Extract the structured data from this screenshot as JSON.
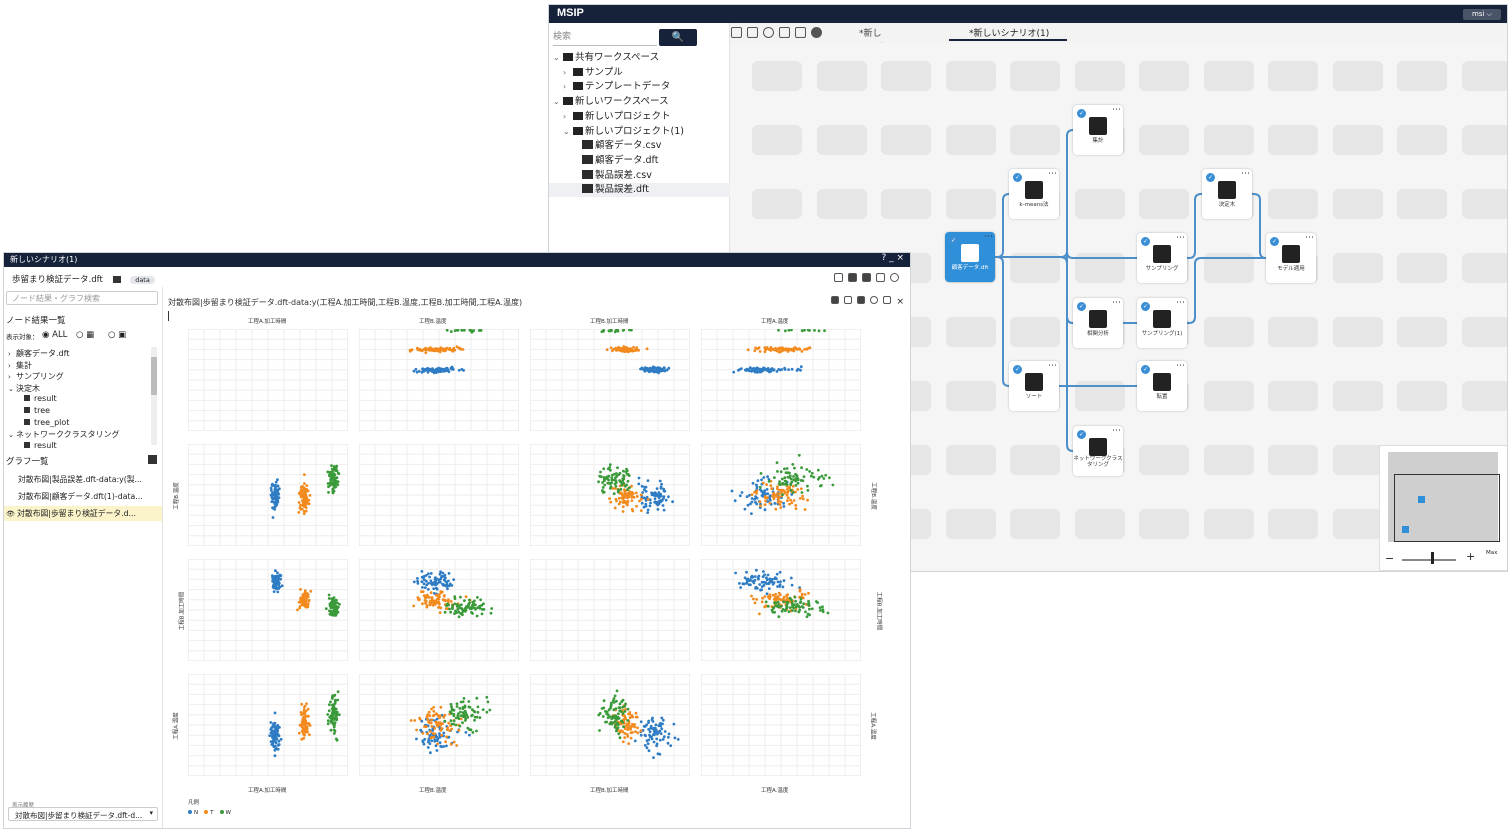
{
  "msip": {
    "app_title": "MSIP",
    "user_label": "msi ⌵",
    "search_placeholder": "検索",
    "search_button": "🔍",
    "tree": [
      {
        "label": "共有ワークスペース",
        "level": 0,
        "chevron": "⌄"
      },
      {
        "label": "サンプル",
        "level": 1,
        "chevron": "›"
      },
      {
        "label": "テンプレートデータ",
        "level": 1,
        "chevron": "›"
      },
      {
        "label": "新しいワークスペース",
        "level": 0,
        "chevron": "⌄"
      },
      {
        "label": "新しいプロジェクト",
        "level": 1,
        "chevron": "›"
      },
      {
        "label": "新しいプロジェクト(1)",
        "level": 1,
        "chevron": "⌄"
      },
      {
        "label": "顧客データ.csv",
        "level": 2,
        "chevron": ""
      },
      {
        "label": "顧客データ.dft",
        "level": 2,
        "chevron": ""
      },
      {
        "label": "製品誤差.csv",
        "level": 2,
        "chevron": ""
      },
      {
        "label": "製品誤差.dft",
        "level": 2,
        "chevron": ""
      }
    ],
    "tabs": [
      {
        "label": "*新しいシナリオ",
        "close": "×"
      },
      {
        "label": "*新しいシナリオ(1)",
        "close": "×"
      }
    ],
    "nodes": {
      "data": "顧客データ.dft",
      "kmeans": "k-means法",
      "agg": "集計",
      "sampling": "サンプリング",
      "sampling1": "サンプリング(1)",
      "corr": "相関分析",
      "sort": "ソート",
      "transpose": "転置",
      "network1": "ネットワーククラス",
      "network2": "タリング",
      "dtree": "決定木",
      "model": "モデル適用"
    },
    "minimap": {
      "zoom_minus": "−",
      "zoom_plus": "+",
      "max_label": "Max"
    }
  },
  "scenario": {
    "window_title": "新しいシナリオ(1)",
    "window_controls": "? _ ×",
    "tab_label": "歩留まり検証データ.dft",
    "tab_badge": "data",
    "node_search_placeholder": "ノード結果・グラフ検索",
    "node_list_title": "ノード結果一覧",
    "display_target": "表示対象：",
    "radio_all": "ALL",
    "node_items": [
      {
        "label": "顧客データ.dft",
        "level": 0,
        "chevron": "›"
      },
      {
        "label": "集計",
        "level": 0,
        "chevron": "›"
      },
      {
        "label": "サンプリング",
        "level": 0,
        "chevron": "›"
      },
      {
        "label": "決定木",
        "level": 0,
        "chevron": "⌄"
      },
      {
        "label": "result",
        "level": 1,
        "chevron": ""
      },
      {
        "label": "tree",
        "level": 1,
        "chevron": ""
      },
      {
        "label": "tree_plot",
        "level": 1,
        "chevron": ""
      },
      {
        "label": "ネットワーククラスタリング",
        "level": 0,
        "chevron": "⌄"
      },
      {
        "label": "result",
        "level": 1,
        "chevron": ""
      }
    ],
    "graph_list_title": "グラフ一覧",
    "graph_items": [
      "対散布図|製品誤差.dft-data:y(製...",
      "対散布図|顧客データ.dft(1)-data...",
      "対散布図|歩留まり検証データ.d..."
    ],
    "display_setting_label": "表示履歴",
    "display_setting_value": "対散布図|歩留まり検証データ.dft-d..."
  },
  "chart_data": {
    "type": "scatter",
    "title": "対散布図|歩留まり検証データ.dft-data:y(工程A.加工時間,工程B.温度,工程B.加工時間,工程A.温度)",
    "variables": [
      "工程A.加工時間",
      "工程B.温度",
      "工程B.加工時間",
      "工程A.温度"
    ],
    "ranges": {
      "工程A.加工時間": [
        0,
        5.5
      ],
      "工程B.温度": [
        0,
        45
      ],
      "工程B.加工時間": [
        0,
        20
      ],
      "工程A.温度": [
        0,
        50
      ],
      "y": [
        0,
        5
      ]
    },
    "ticks": {
      "工程A.加工時間": [
        "0",
        "0.5",
        "1",
        "1.5",
        "2",
        "2.5",
        "3",
        "3.5",
        "4",
        "4.5",
        "5",
        "5.5"
      ],
      "工程B.温度": [
        "0",
        "5",
        "10",
        "15",
        "20",
        "25",
        "30",
        "35",
        "40",
        "45"
      ],
      "工程B.加工時間": [
        "0",
        "2",
        "4",
        "6",
        "8",
        "10",
        "12",
        "14",
        "16",
        "18",
        "20"
      ],
      "工程A.温度": [
        "0",
        "5",
        "10",
        "15",
        "20",
        "25",
        "30",
        "35",
        "40",
        "45",
        "50"
      ]
    },
    "legend_title": "凡例",
    "series": [
      {
        "name": "N",
        "color": "#2e7cc4",
        "y": 3,
        "ptA": 3.0,
        "tB": 22,
        "ptB": 15.5,
        "tA": 20
      },
      {
        "name": "T",
        "color": "#f28a1e",
        "y": 4,
        "ptA": 4.0,
        "tB": 22,
        "ptB": 12,
        "tA": 25
      },
      {
        "name": "W",
        "color": "#3a9a3a",
        "y": 5,
        "ptA": 5.0,
        "tB": 30,
        "ptB": 10.5,
        "tA": 30
      }
    ],
    "grid": true,
    "legend_position": "bottom-left"
  }
}
